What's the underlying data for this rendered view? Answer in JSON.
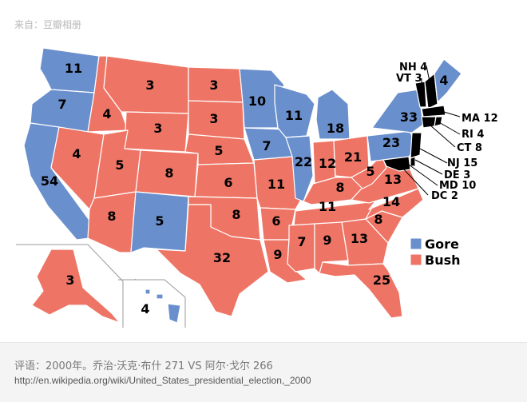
{
  "source_label": "来自：豆瓣相册",
  "caption": "评语：2000年。乔治·沃克·布什 271 VS 阿尔·戈尔 266",
  "url": "http://en.wikipedia.org/wiki/United_States_presidential_election,_2000",
  "colors": {
    "gore": "#6a8fcd",
    "bush": "#ee7565",
    "border": "#ffffff",
    "text": "#000000"
  },
  "legend": [
    {
      "label": "Gore",
      "color": "#6a8fcd"
    },
    {
      "label": "Bush",
      "color": "#ee7565"
    }
  ],
  "states": {
    "WA": {
      "votes": "11",
      "winner": "gore"
    },
    "OR": {
      "votes": "7",
      "winner": "gore"
    },
    "CA": {
      "votes": "54",
      "winner": "gore"
    },
    "NV": {
      "votes": "4",
      "winner": "bush"
    },
    "ID": {
      "votes": "4",
      "winner": "bush"
    },
    "MT": {
      "votes": "3",
      "winner": "bush"
    },
    "WY": {
      "votes": "3",
      "winner": "bush"
    },
    "UT": {
      "votes": "5",
      "winner": "bush"
    },
    "AZ": {
      "votes": "8",
      "winner": "bush"
    },
    "CO": {
      "votes": "8",
      "winner": "bush"
    },
    "NM": {
      "votes": "5",
      "winner": "gore"
    },
    "ND": {
      "votes": "3",
      "winner": "bush"
    },
    "SD": {
      "votes": "3",
      "winner": "bush"
    },
    "NE": {
      "votes": "5",
      "winner": "bush"
    },
    "KS": {
      "votes": "6",
      "winner": "bush"
    },
    "OK": {
      "votes": "8",
      "winner": "bush"
    },
    "TX": {
      "votes": "32",
      "winner": "bush"
    },
    "MN": {
      "votes": "10",
      "winner": "gore"
    },
    "IA": {
      "votes": "7",
      "winner": "gore"
    },
    "MO": {
      "votes": "11",
      "winner": "bush"
    },
    "AR": {
      "votes": "6",
      "winner": "bush"
    },
    "LA": {
      "votes": "9",
      "winner": "bush"
    },
    "WI": {
      "votes": "11",
      "winner": "gore"
    },
    "IL": {
      "votes": "22",
      "winner": "gore"
    },
    "MI": {
      "votes": "18",
      "winner": "gore"
    },
    "IN": {
      "votes": "12",
      "winner": "bush"
    },
    "OH": {
      "votes": "21",
      "winner": "bush"
    },
    "KY": {
      "votes": "8",
      "winner": "bush"
    },
    "TN": {
      "votes": "11",
      "winner": "bush"
    },
    "MS": {
      "votes": "7",
      "winner": "bush"
    },
    "AL": {
      "votes": "9",
      "winner": "bush"
    },
    "GA": {
      "votes": "13",
      "winner": "bush"
    },
    "FL": {
      "votes": "25",
      "winner": "bush"
    },
    "SC": {
      "votes": "8",
      "winner": "bush"
    },
    "NC": {
      "votes": "14",
      "winner": "bush"
    },
    "VA": {
      "votes": "13",
      "winner": "bush"
    },
    "WV": {
      "votes": "5",
      "winner": "bush"
    },
    "PA": {
      "votes": "23",
      "winner": "gore"
    },
    "NY": {
      "votes": "33",
      "winner": "gore"
    },
    "ME": {
      "votes": "4",
      "winner": "gore"
    },
    "AK": {
      "votes": "3",
      "winner": "bush"
    },
    "HI": {
      "votes": "4",
      "winner": "gore"
    }
  },
  "callouts": [
    {
      "text": "NH 4",
      "winner": "bush"
    },
    {
      "text": "VT 3",
      "winner": "gore"
    },
    {
      "text": "MA 12",
      "winner": "gore"
    },
    {
      "text": "RI 4",
      "winner": "gore"
    },
    {
      "text": "CT 8",
      "winner": "gore"
    },
    {
      "text": "NJ 15",
      "winner": "gore"
    },
    {
      "text": "DE 3",
      "winner": "gore"
    },
    {
      "text": "MD 10",
      "winner": "gore"
    },
    {
      "text": "DC 2",
      "winner": "gore"
    }
  ]
}
